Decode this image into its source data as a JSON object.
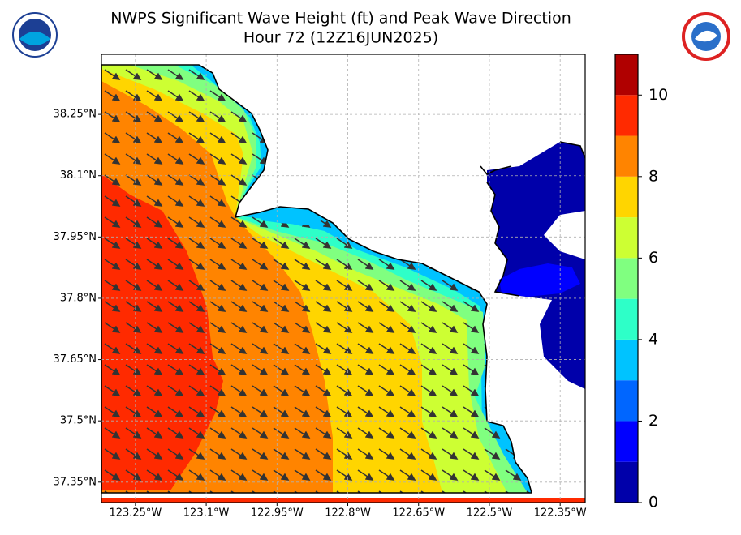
{
  "map": {
    "title": "NWPS Significant Wave Height (ft) and Peak Wave Direction",
    "subtitle": "Hour 72 (12Z16JUN2025)",
    "xlim": [
      -123.322,
      -122.297
    ],
    "ylim": [
      37.3,
      38.397
    ],
    "xticks": [
      {
        "value": -123.25,
        "label": "123.25°W"
      },
      {
        "value": -123.1,
        "label": "123.1°W"
      },
      {
        "value": -122.95,
        "label": "122.95°W"
      },
      {
        "value": -122.8,
        "label": "122.8°W"
      },
      {
        "value": -122.65,
        "label": "122.65°W"
      },
      {
        "value": -122.5,
        "label": "122.5°W"
      },
      {
        "value": -122.35,
        "label": "122.35°W"
      }
    ],
    "yticks": [
      {
        "value": 38.25,
        "label": "38.25°N"
      },
      {
        "value": 38.1,
        "label": "38.1°N"
      },
      {
        "value": 37.95,
        "label": "37.95°N"
      },
      {
        "value": 37.8,
        "label": "37.8°N"
      },
      {
        "value": 37.65,
        "label": "37.65°N"
      },
      {
        "value": 37.5,
        "label": "37.5°N"
      },
      {
        "value": 37.35,
        "label": "37.35°N"
      }
    ],
    "grid": true,
    "colorbar": {
      "lim": [
        0,
        11
      ],
      "levels": [
        0,
        1,
        2,
        3,
        4,
        5,
        6,
        7,
        8,
        9,
        10,
        11
      ],
      "colors": [
        "#0000aa",
        "#0000ff",
        "#0066ff",
        "#00c3ff",
        "#2effc8",
        "#80ff80",
        "#cdff33",
        "#ffd500",
        "#ff8400",
        "#ff2a00",
        "#b00000"
      ],
      "ticks": [
        0,
        2,
        4,
        6,
        8,
        10
      ]
    }
  }
}
